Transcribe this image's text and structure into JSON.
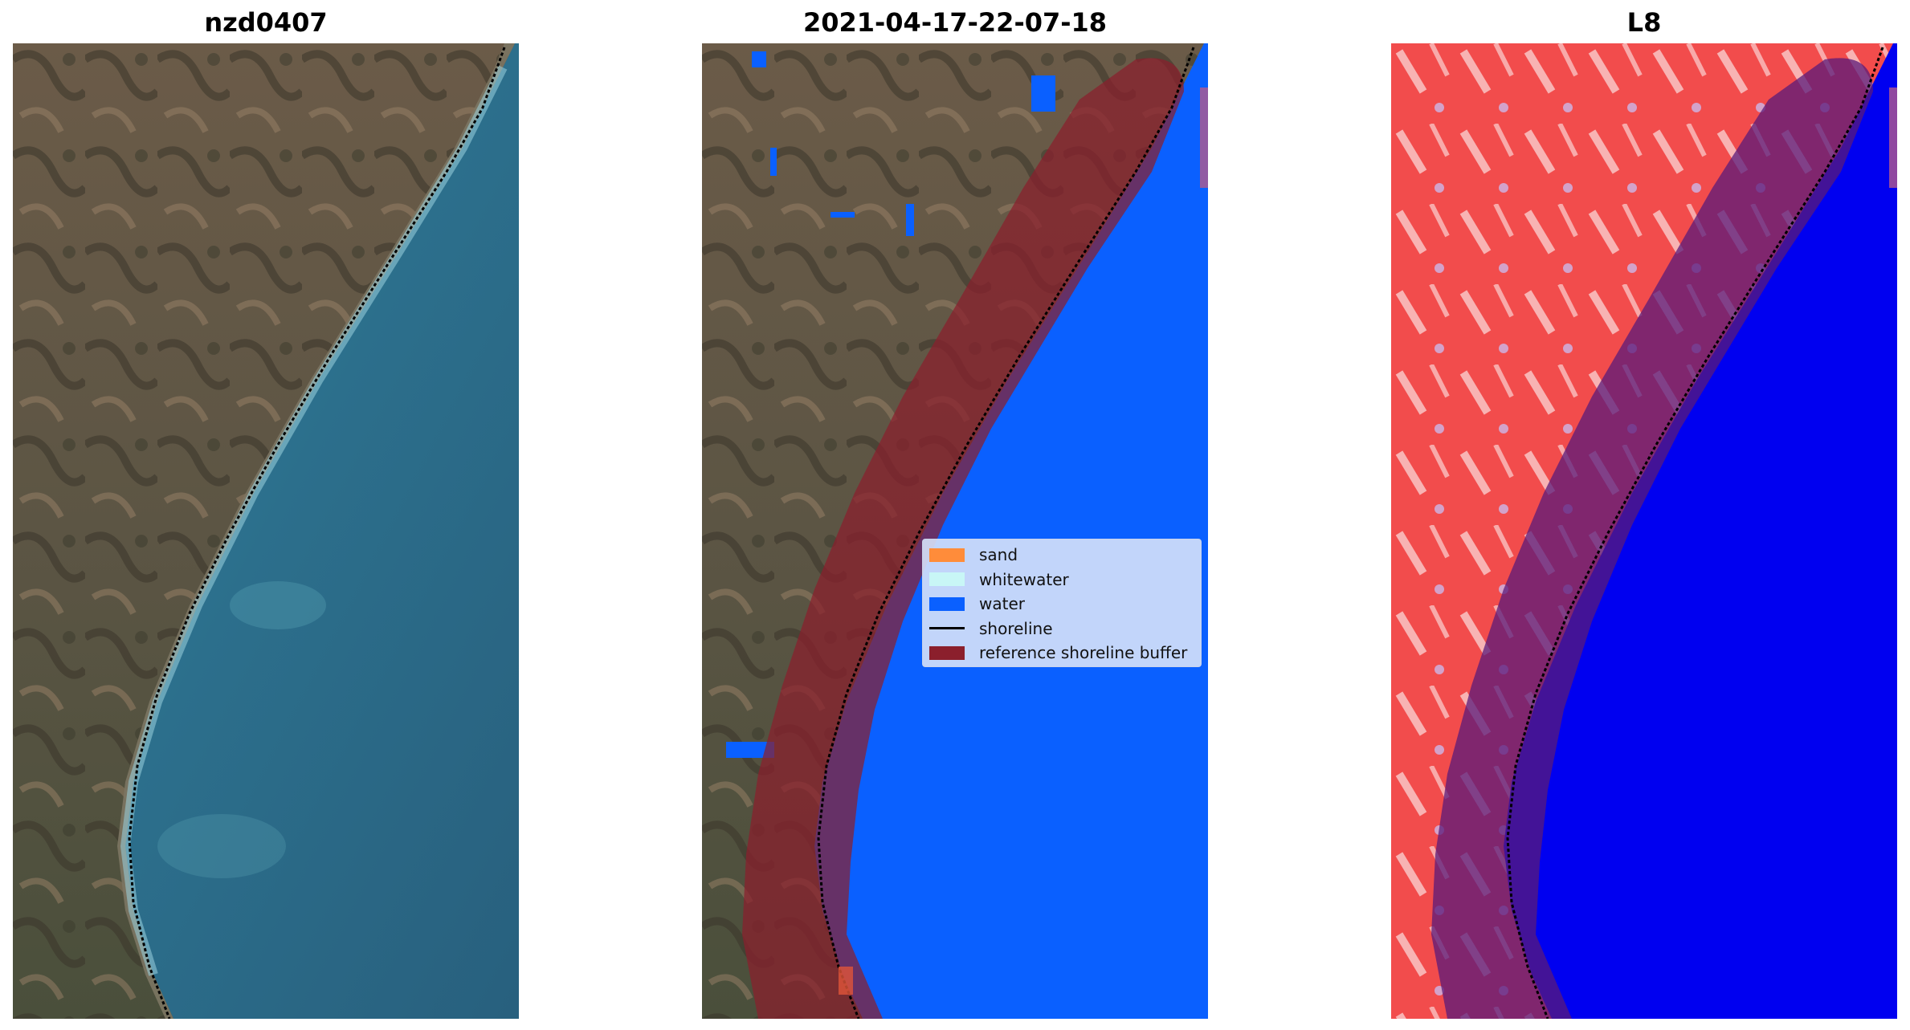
{
  "panels": [
    {
      "title": "nzd0407"
    },
    {
      "title": "2021-04-17-22-07-18"
    },
    {
      "title": "L8"
    }
  ],
  "legend": {
    "items": [
      {
        "label": "sand",
        "color": "#ff8c3a",
        "kind": "patch"
      },
      {
        "label": "whitewater",
        "color": "#c8f6f6",
        "kind": "patch"
      },
      {
        "label": "water",
        "color": "#0a60ff",
        "kind": "patch"
      },
      {
        "label": "shoreline",
        "color": "#000000",
        "kind": "line"
      },
      {
        "label": "reference shoreline buffer",
        "color": "#8b1f2c",
        "kind": "patch"
      }
    ]
  },
  "colors": {
    "land_dark": "#4f4b3e",
    "land_light": "#7d6a55",
    "sea": "#2d6b8a",
    "classified_water": "#0a60ff",
    "buffer": "#8b1f2c",
    "index_land": "#f04a4a",
    "index_water": "#0000f0"
  }
}
